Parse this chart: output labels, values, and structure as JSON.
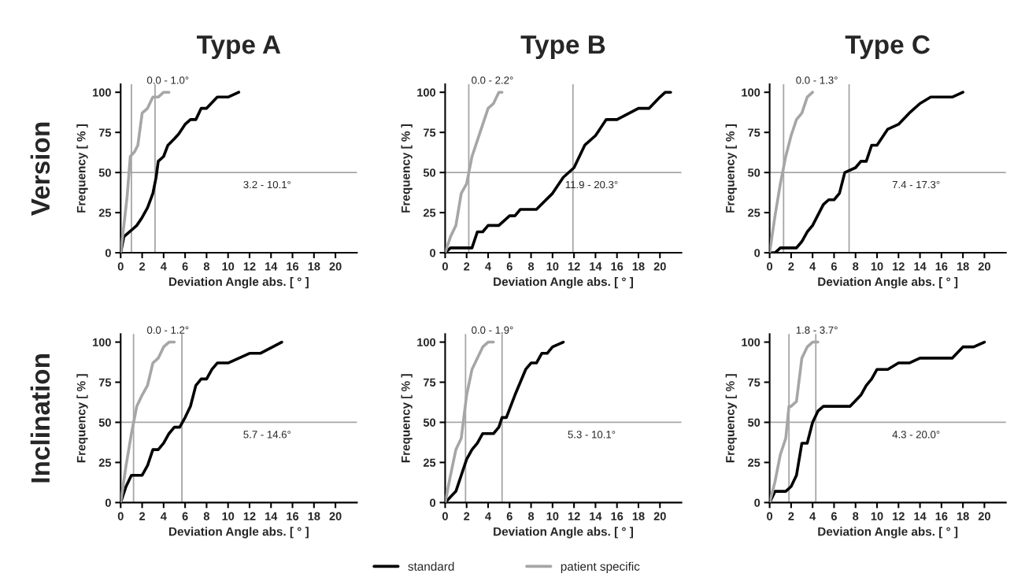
{
  "chart_data": [
    {
      "type": "line",
      "title": "Type A",
      "xlabel": "Deviation Angle abs. [ ° ]",
      "ylabel": "Frequency [ % ]",
      "xlim": [
        0,
        22
      ],
      "ylim": [
        0,
        105
      ],
      "xticks": [
        0,
        2,
        4,
        6,
        8,
        10,
        12,
        14,
        16,
        18,
        20
      ],
      "yticks": [
        0,
        25,
        50,
        75,
        100
      ],
      "grid": false,
      "marker": "none",
      "line_style": "solid",
      "series": [
        {
          "name": "standard",
          "color": "#000000",
          "x": [
            0,
            0.3,
            1,
            1.5,
            2,
            2.5,
            3,
            3.3,
            3.5,
            4,
            4.4,
            5,
            5.4,
            6,
            6.5,
            7,
            7.5,
            8,
            9,
            10,
            11
          ],
          "values": [
            0,
            10,
            14,
            17,
            22,
            28,
            37,
            47,
            57,
            60,
            67,
            71,
            74,
            80,
            83,
            83,
            90,
            90,
            97,
            97,
            100
          ]
        },
        {
          "name": "patient specific",
          "color": "#a6a6a6",
          "x": [
            0,
            0.3,
            0.6,
            0.9,
            1.3,
            1.6,
            2,
            2.5,
            3,
            3.5,
            4,
            4.5
          ],
          "values": [
            0,
            17,
            35,
            60,
            63,
            67,
            87,
            90,
            97,
            97,
            100,
            100
          ]
        }
      ],
      "ref_lines": [
        {
          "axis": "y",
          "value": 50,
          "color": "#a6a6a6"
        },
        {
          "axis": "x",
          "value": 1.0,
          "color": "#a6a6a6"
        },
        {
          "axis": "x",
          "value": 3.2,
          "color": "#a6a6a6"
        }
      ],
      "annotations": [
        "Version",
        "0.0 - 1.0°",
        "3.2 - 10.1°"
      ],
      "legend": "bottom"
    },
    {
      "type": "line",
      "title": "Type B",
      "xlabel": "Deviation Angle abs. [ ° ]",
      "ylabel": "Frequency [ % ]",
      "xlim": [
        0,
        22
      ],
      "ylim": [
        0,
        105
      ],
      "xticks": [
        0,
        2,
        4,
        6,
        8,
        10,
        12,
        14,
        16,
        18,
        20
      ],
      "yticks": [
        0,
        25,
        50,
        75,
        100
      ],
      "grid": false,
      "marker": "none",
      "line_style": "solid",
      "series": [
        {
          "color": "#000000",
          "x": [
            0,
            0.5,
            2.5,
            3,
            3.5,
            4,
            5,
            6,
            6.5,
            7,
            8.5,
            10,
            11,
            12,
            13,
            14,
            15,
            16,
            18,
            19,
            20,
            20.5,
            21
          ],
          "values": [
            0,
            3,
            3,
            13,
            13,
            17,
            17,
            23,
            23,
            27,
            27,
            37,
            47,
            53,
            67,
            73,
            83,
            83,
            90,
            90,
            97,
            100,
            100
          ]
        },
        {
          "color": "#a6a6a6",
          "x": [
            0,
            0.5,
            1,
            1.5,
            2,
            2.5,
            3,
            4,
            4.5,
            5,
            5.3
          ],
          "values": [
            0,
            10,
            17,
            37,
            43,
            60,
            70,
            90,
            93,
            100,
            100
          ]
        }
      ],
      "ref_lines": [
        {
          "axis": "y",
          "value": 50,
          "color": "#a6a6a6"
        },
        {
          "axis": "x",
          "value": 2.2,
          "color": "#a6a6a6"
        },
        {
          "axis": "x",
          "value": 11.9,
          "color": "#a6a6a6"
        }
      ],
      "annotations": [
        "0.0 - 2.2°",
        "11.9 - 20.3°"
      ]
    },
    {
      "type": "line",
      "title": "Type C",
      "xlabel": "Deviation Angle abs. [ ° ]",
      "ylabel": "Frequency [ % ]",
      "xlim": [
        0,
        22
      ],
      "ylim": [
        0,
        105
      ],
      "xticks": [
        0,
        2,
        4,
        6,
        8,
        10,
        12,
        14,
        16,
        18,
        20
      ],
      "yticks": [
        0,
        25,
        50,
        75,
        100
      ],
      "grid": false,
      "marker": "none",
      "line_style": "solid",
      "series": [
        {
          "color": "#000000",
          "x": [
            0,
            0.5,
            1,
            2.5,
            3,
            3.5,
            4,
            5,
            5.5,
            6,
            6.5,
            7,
            8,
            8.5,
            9,
            9.5,
            10,
            11,
            12,
            13,
            14,
            15,
            17,
            18
          ],
          "values": [
            0,
            0,
            3,
            3,
            7,
            13,
            17,
            30,
            33,
            33,
            37,
            50,
            53,
            57,
            57,
            67,
            67,
            77,
            80,
            87,
            93,
            97,
            97,
            100
          ]
        },
        {
          "color": "#a6a6a6",
          "x": [
            0,
            0.5,
            1,
            1.5,
            2,
            2.5,
            3,
            3.5,
            4
          ],
          "values": [
            0,
            23,
            43,
            60,
            73,
            83,
            87,
            97,
            100
          ]
        }
      ],
      "ref_lines": [
        {
          "axis": "y",
          "value": 50,
          "color": "#a6a6a6"
        },
        {
          "axis": "x",
          "value": 1.3,
          "color": "#a6a6a6"
        },
        {
          "axis": "x",
          "value": 7.4,
          "color": "#a6a6a6"
        }
      ],
      "annotations": [
        "0.0 - 1.3°",
        "7.4 - 17.3°"
      ]
    },
    {
      "type": "line",
      "xlabel": "Deviation Angle abs. [ ° ]",
      "ylabel": "Frequency [ % ]",
      "xlim": [
        0,
        22
      ],
      "ylim": [
        0,
        105
      ],
      "xticks": [
        0,
        2,
        4,
        6,
        8,
        10,
        12,
        14,
        16,
        18,
        20
      ],
      "yticks": [
        0,
        25,
        50,
        75,
        100
      ],
      "grid": false,
      "marker": "none",
      "line_style": "solid",
      "series": [
        {
          "color": "#000000",
          "x": [
            0,
            0.5,
            1,
            2,
            2.5,
            3,
            3.5,
            4,
            4.5,
            5,
            5.5,
            6,
            6.5,
            7,
            7.5,
            8,
            8.5,
            9,
            10,
            12,
            13,
            15
          ],
          "values": [
            0,
            10,
            17,
            17,
            23,
            33,
            33,
            37,
            43,
            47,
            47,
            53,
            60,
            73,
            77,
            77,
            83,
            87,
            87,
            93,
            93,
            100
          ]
        },
        {
          "color": "#a6a6a6",
          "x": [
            0,
            0.5,
            1,
            1.5,
            2,
            2.5,
            3,
            3.5,
            4,
            4.5,
            5
          ],
          "values": [
            0,
            23,
            43,
            60,
            67,
            73,
            87,
            90,
            97,
            100,
            100
          ]
        }
      ],
      "ref_lines": [
        {
          "axis": "y",
          "value": 50,
          "color": "#a6a6a6"
        },
        {
          "axis": "x",
          "value": 1.2,
          "color": "#a6a6a6"
        },
        {
          "axis": "x",
          "value": 5.7,
          "color": "#a6a6a6"
        }
      ],
      "annotations": [
        "Inclination",
        "0.0 - 1.2°",
        "5.7 - 14.6°"
      ]
    },
    {
      "type": "line",
      "xlabel": "Deviation Angle abs. [ ° ]",
      "ylabel": "Frequency [ % ]",
      "xlim": [
        0,
        22
      ],
      "ylim": [
        0,
        105
      ],
      "xticks": [
        0,
        2,
        4,
        6,
        8,
        10,
        12,
        14,
        16,
        18,
        20
      ],
      "yticks": [
        0,
        25,
        50,
        75,
        100
      ],
      "grid": false,
      "marker": "none",
      "line_style": "solid",
      "series": [
        {
          "color": "#000000",
          "x": [
            0,
            1,
            1.5,
            2,
            2.5,
            3,
            3.5,
            4.5,
            5,
            5.3,
            5.7,
            6.5,
            7.5,
            8,
            8.5,
            9,
            9.5,
            10,
            11
          ],
          "values": [
            0,
            7,
            17,
            27,
            33,
            37,
            43,
            43,
            47,
            53,
            53,
            67,
            83,
            87,
            87,
            93,
            93,
            97,
            100
          ]
        },
        {
          "color": "#a6a6a6",
          "x": [
            0,
            0.5,
            1,
            1.5,
            2,
            2.5,
            3.5,
            4,
            4.5
          ],
          "values": [
            0,
            17,
            33,
            40,
            67,
            83,
            97,
            100,
            100
          ]
        }
      ],
      "ref_lines": [
        {
          "axis": "y",
          "value": 50,
          "color": "#a6a6a6"
        },
        {
          "axis": "x",
          "value": 1.9,
          "color": "#a6a6a6"
        },
        {
          "axis": "x",
          "value": 5.3,
          "color": "#a6a6a6"
        }
      ],
      "annotations": [
        "0.0 - 1.9°",
        "5.3 - 10.1°"
      ]
    },
    {
      "type": "line",
      "xlabel": "Deviation Angle abs. [ ° ]",
      "ylabel": "Frequency [ % ]",
      "xlim": [
        0,
        22
      ],
      "ylim": [
        0,
        105
      ],
      "xticks": [
        0,
        2,
        4,
        6,
        8,
        10,
        12,
        14,
        16,
        18,
        20
      ],
      "yticks": [
        0,
        25,
        50,
        75,
        100
      ],
      "grid": false,
      "marker": "none",
      "line_style": "solid",
      "series": [
        {
          "color": "#000000",
          "x": [
            0,
            0.5,
            1.5,
            2,
            2.5,
            3,
            3.5,
            4,
            4.5,
            5,
            7.5,
            8.5,
            9,
            9.5,
            10,
            11,
            12,
            13,
            14,
            17,
            18,
            19,
            20
          ],
          "values": [
            0,
            7,
            7,
            10,
            17,
            37,
            37,
            50,
            57,
            60,
            60,
            67,
            73,
            77,
            83,
            83,
            87,
            87,
            90,
            90,
            97,
            97,
            100
          ]
        },
        {
          "color": "#a6a6a6",
          "x": [
            0,
            0.5,
            1,
            1.5,
            1.8,
            2,
            2.5,
            3,
            3.5,
            4,
            4.5
          ],
          "values": [
            0,
            13,
            30,
            40,
            60,
            60,
            63,
            90,
            97,
            100,
            100
          ]
        }
      ],
      "ref_lines": [
        {
          "axis": "y",
          "value": 50,
          "color": "#a6a6a6"
        },
        {
          "axis": "x",
          "value": 1.8,
          "color": "#a6a6a6"
        },
        {
          "axis": "x",
          "value": 4.3,
          "color": "#a6a6a6"
        }
      ],
      "annotations": [
        "1.8 - 3.7°",
        "4.3 - 20.0°"
      ]
    }
  ]
}
